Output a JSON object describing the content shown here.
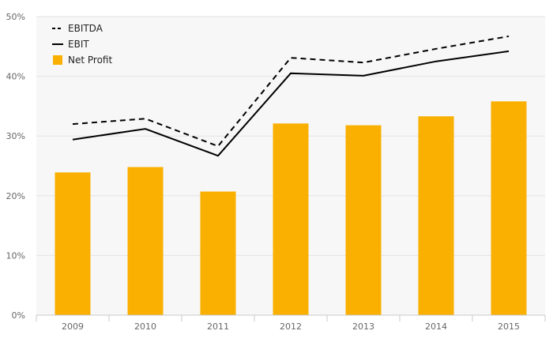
{
  "chart_data": {
    "type": "bar",
    "categories": [
      "2009",
      "2010",
      "2011",
      "2012",
      "2013",
      "2014",
      "2015"
    ],
    "series": [
      {
        "name": "EBITDA",
        "kind": "line",
        "style": "dashed",
        "color": "#000000",
        "values": [
          32.0,
          32.9,
          28.3,
          43.1,
          42.3,
          44.6,
          46.7
        ]
      },
      {
        "name": "EBIT",
        "kind": "line",
        "style": "solid",
        "color": "#000000",
        "values": [
          29.4,
          31.2,
          26.7,
          40.5,
          40.1,
          42.5,
          44.2
        ]
      },
      {
        "name": "Net Profit",
        "kind": "bar",
        "color": "#f9b000",
        "values": [
          23.9,
          24.8,
          20.7,
          32.1,
          31.8,
          33.3,
          35.8
        ]
      }
    ],
    "ylim": [
      0,
      50
    ],
    "yticks": [
      0,
      10,
      20,
      30,
      40,
      50
    ],
    "ytick_labels": [
      "0%",
      "10%",
      "20%",
      "30%",
      "40%",
      "50%"
    ],
    "grid": true,
    "legend_position": "top-left",
    "title": "",
    "xlabel": "",
    "ylabel": ""
  }
}
